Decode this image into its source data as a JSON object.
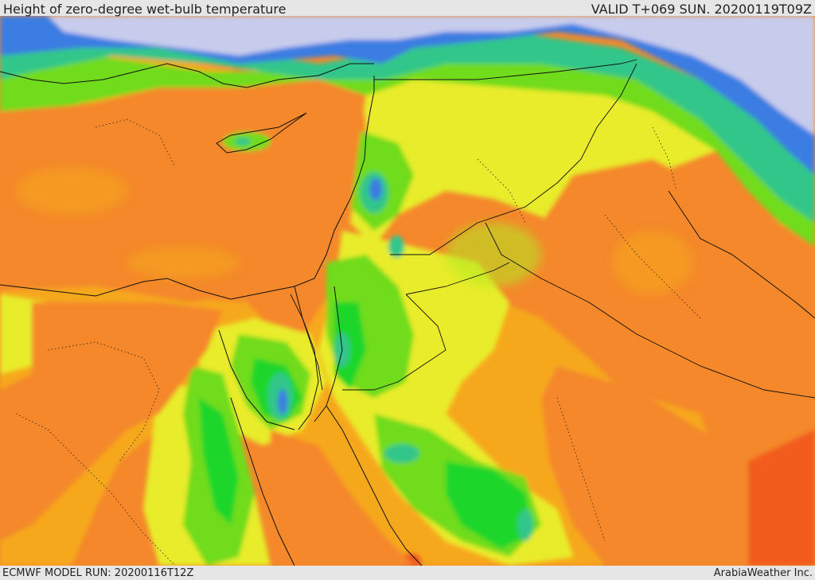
{
  "header": {
    "title": "Height of zero-degree wet-bulb temperature",
    "valid": "VALID T+069 SUN. 20200119T09Z"
  },
  "footer": {
    "model_run": "ECMWF MODEL RUN: 20200116T12Z",
    "credit": "ArabiaWeather Inc."
  },
  "colors": {
    "orange": "#f4882b",
    "dark_orange": "#f25c1a",
    "amber": "#f6a81c",
    "yellow": "#e8ec2a",
    "yellow_green": "#b4ea22",
    "green": "#6fdc1c",
    "bright_green": "#1cd62a",
    "teal": "#30c68a",
    "light_blue": "#9ce8f4",
    "blue": "#3a7de2",
    "violet": "#6c5ce6",
    "lavender": "#c8ccec",
    "border": "#111111"
  }
}
